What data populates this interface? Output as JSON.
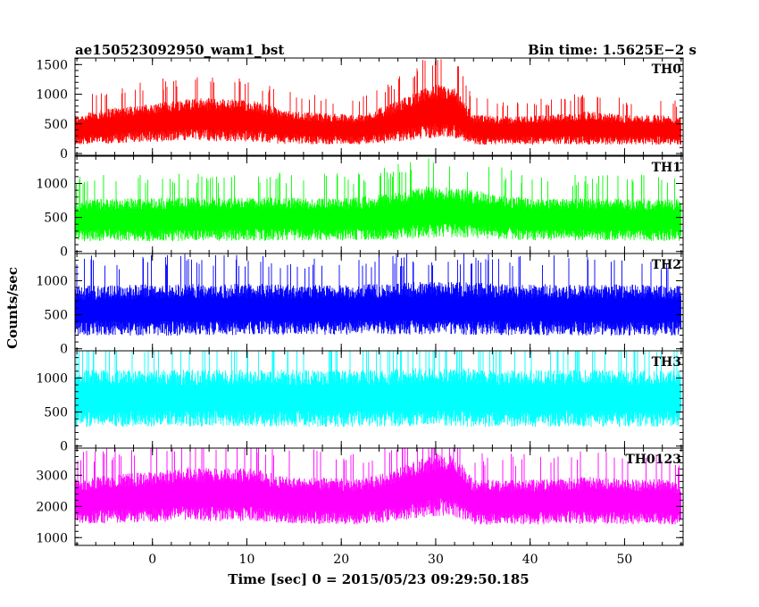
{
  "header": {
    "title": "ae150523092950_wam1_bst",
    "bin_time": "Bin time: 1.5625E−2 s"
  },
  "axes": {
    "ylabel": "Counts/sec",
    "xlabel": "Time [sec] 0 = 2015/05/23 09:29:50.185"
  },
  "chart_data": {
    "type": "line",
    "x_range": [
      -8.2,
      56.2
    ],
    "x_ticks": [
      0,
      10,
      20,
      30,
      40,
      50
    ],
    "x_tick_labels": [
      "0",
      "10",
      "20",
      "30",
      "40",
      "50"
    ],
    "data_start": -8.2,
    "data_end": 56.0,
    "bin_time": 0.015625,
    "panels": [
      {
        "name": "TH0",
        "color": "#ff0000",
        "ylim": [
          -30,
          1610
        ],
        "y_ticks": [
          0,
          500,
          1000,
          1500
        ],
        "y_tick_labels": [
          "0",
          "500",
          "1000",
          "1500"
        ],
        "envelope": {
          "x": [
            -8,
            -4,
            0,
            4,
            8,
            11,
            14,
            18,
            22,
            25,
            28,
            30,
            32,
            34,
            38,
            42,
            46,
            50,
            54,
            56
          ],
          "mean": [
            400,
            480,
            520,
            580,
            560,
            540,
            440,
            420,
            400,
            500,
            640,
            720,
            680,
            400,
            390,
            400,
            430,
            400,
            400,
            380
          ],
          "amp": [
            180,
            220,
            230,
            260,
            260,
            250,
            200,
            190,
            180,
            230,
            290,
            320,
            300,
            180,
            170,
            180,
            200,
            180,
            180,
            170
          ]
        }
      },
      {
        "name": "TH1",
        "color": "#00ff00",
        "ylim": [
          -30,
          1400
        ],
        "y_ticks": [
          0,
          500,
          1000
        ],
        "y_tick_labels": [
          "0",
          "500",
          "1000"
        ],
        "envelope": {
          "x": [
            -8,
            0,
            10,
            20,
            26,
            30,
            33,
            40,
            50,
            56
          ],
          "mean": [
            460,
            470,
            480,
            470,
            520,
            600,
            560,
            470,
            470,
            460
          ],
          "amp": [
            220,
            230,
            230,
            220,
            250,
            280,
            260,
            220,
            220,
            220
          ]
        }
      },
      {
        "name": "TH2",
        "color": "#0000ff",
        "ylim": [
          -30,
          1400
        ],
        "y_ticks": [
          0,
          500,
          1000
        ],
        "y_tick_labels": [
          "0",
          "500",
          "1000"
        ],
        "envelope": {
          "x": [
            -8,
            0,
            10,
            20,
            30,
            40,
            50,
            56
          ],
          "mean": [
            560,
            570,
            580,
            570,
            600,
            570,
            570,
            560
          ],
          "amp": [
            260,
            270,
            270,
            260,
            280,
            270,
            270,
            260
          ]
        }
      },
      {
        "name": "TH3",
        "color": "#00ffff",
        "ylim": [
          -30,
          1400
        ],
        "y_ticks": [
          0,
          500,
          1000
        ],
        "y_tick_labels": [
          "0",
          "500",
          "1000"
        ],
        "envelope": {
          "x": [
            -8,
            0,
            10,
            20,
            30,
            40,
            50,
            56
          ],
          "mean": [
            700,
            700,
            710,
            700,
            720,
            700,
            700,
            700
          ],
          "amp": [
            300,
            300,
            300,
            300,
            310,
            300,
            300,
            300
          ]
        }
      },
      {
        "name": "TH0123",
        "color": "#ff00ff",
        "ylim": [
          750,
          3870
        ],
        "y_ticks": [
          1000,
          2000,
          3000
        ],
        "y_tick_labels": [
          "1000",
          "2000",
          "3000"
        ],
        "envelope": {
          "x": [
            -8,
            -4,
            0,
            4,
            8,
            11,
            14,
            18,
            22,
            25,
            28,
            30,
            32,
            34,
            38,
            42,
            46,
            50,
            54,
            56
          ],
          "mean": [
            2150,
            2250,
            2300,
            2400,
            2380,
            2360,
            2200,
            2180,
            2150,
            2300,
            2550,
            2700,
            2650,
            2150,
            2130,
            2150,
            2200,
            2150,
            2150,
            2100
          ],
          "amp": [
            520,
            560,
            580,
            620,
            620,
            600,
            540,
            530,
            520,
            580,
            660,
            720,
            700,
            520,
            510,
            520,
            540,
            520,
            520,
            500
          ]
        }
      }
    ]
  }
}
